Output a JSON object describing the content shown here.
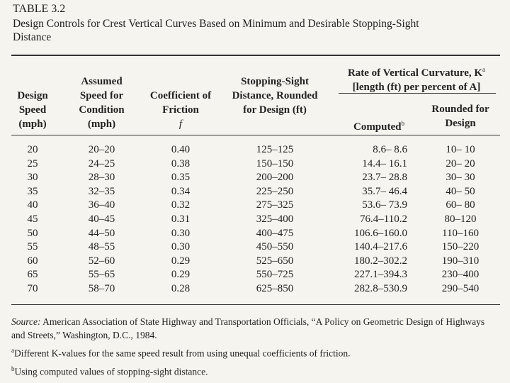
{
  "title": "TABLE 3.2",
  "subtitle": "Design Controls for Crest Vertical Curves Based on Minimum and Desirable Stopping-Sight Distance",
  "table": {
    "headers": [
      "Design Speed (mph)",
      "Assumed Speed for Condition (mph)",
      "Coefficient of Friction",
      "Stopping-Sight Distance, Rounded for Design (ft)"
    ],
    "friction_symbol": "f",
    "group_header": {
      "text": "Rate of Vertical Curvature, K",
      "sup": "a",
      "line2": "[length (ft) per percent of A]"
    },
    "sub_headers": [
      {
        "text": "Computed",
        "sup": "b"
      },
      {
        "text": "Rounded for Design",
        "sup": null
      }
    ],
    "rows": [
      [
        "20",
        "20–20",
        "0.40",
        "125–125",
        "8.6– 8.6",
        "10– 10"
      ],
      [
        "25",
        "24–25",
        "0.38",
        "150–150",
        "14.4– 16.1",
        "20– 20"
      ],
      [
        "30",
        "28–30",
        "0.35",
        "200–200",
        "23.7– 28.8",
        "30– 30"
      ],
      [
        "35",
        "32–35",
        "0.34",
        "225–250",
        "35.7– 46.4",
        "40– 50"
      ],
      [
        "40",
        "36–40",
        "0.32",
        "275–325",
        "53.6– 73.9",
        "60– 80"
      ],
      [
        "45",
        "40–45",
        "0.31",
        "325–400",
        "76.4–110.2",
        "80–120"
      ],
      [
        "50",
        "44–50",
        "0.30",
        "400–475",
        "106.6–160.0",
        "110–160"
      ],
      [
        "55",
        "48–55",
        "0.30",
        "450–550",
        "140.4–217.6",
        "150–220"
      ],
      [
        "60",
        "52–60",
        "0.29",
        "525–650",
        "180.2–302.2",
        "190–310"
      ],
      [
        "65",
        "55–65",
        "0.29",
        "550–725",
        "227.1–394.3",
        "230–400"
      ],
      [
        "70",
        "58–70",
        "0.28",
        "625–850",
        "282.8–530.9",
        "290–540"
      ]
    ]
  },
  "footnotes": {
    "source_label": "Source:",
    "source": "American Association of State Highway and Transportation Officials, “A Policy on Geometric Design of Highways and Streets,” Washington, D.C., 1984.",
    "notes": [
      {
        "mark": "a",
        "text": "Different K-values for the same speed result from using unequal coefficients of friction."
      },
      {
        "mark": "b",
        "text": "Using computed values of stopping-sight distance."
      }
    ]
  }
}
